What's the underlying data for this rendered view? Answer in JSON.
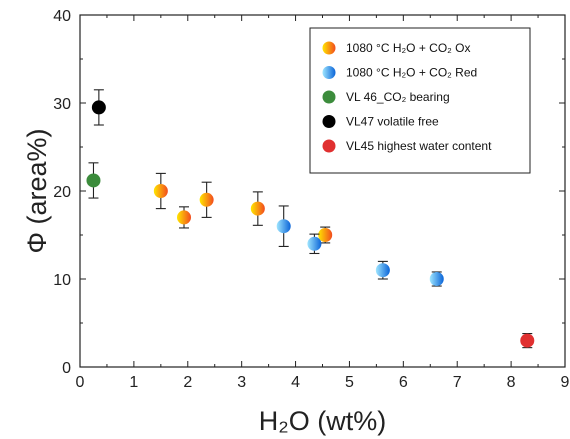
{
  "chart_data": {
    "type": "scatter",
    "xlabel": "H₂O (wt%)",
    "ylabel": "Φ (area%)",
    "xlim": [
      0,
      9
    ],
    "ylim": [
      0,
      40
    ],
    "x_ticks": [
      "0",
      "1",
      "2",
      "3",
      "4",
      "5",
      "6",
      "7",
      "8",
      "9"
    ],
    "y_ticks": [
      "0",
      "10",
      "20",
      "30",
      "40"
    ],
    "grid": false,
    "legend_position": "top-right",
    "series": [
      {
        "name": "1080 °C H₂O + CO₂ Ox",
        "color": "#f5a623",
        "gradient": [
          "#ffe600",
          "#f24b1e"
        ],
        "points": [
          {
            "x": 1.5,
            "y": 20.0,
            "err": 2.0
          },
          {
            "x": 1.93,
            "y": 17.0,
            "err": 1.2
          },
          {
            "x": 2.35,
            "y": 19.0,
            "err": 2.0
          },
          {
            "x": 3.3,
            "y": 18.0,
            "err": 1.9
          },
          {
            "x": 4.55,
            "y": 15.0,
            "err": 0.9
          }
        ]
      },
      {
        "name": "1080 °C H₂O + CO₂ Red",
        "color": "#1e90ff",
        "gradient": [
          "#9fe6ff",
          "#0a64d8"
        ],
        "points": [
          {
            "x": 3.78,
            "y": 16.0,
            "err": 2.3
          },
          {
            "x": 4.35,
            "y": 14.0,
            "err": 1.1
          },
          {
            "x": 5.62,
            "y": 11.0,
            "err": 1.0
          },
          {
            "x": 6.62,
            "y": 10.0,
            "err": 0.8
          }
        ]
      },
      {
        "name": "VL 46_CO₂ bearing",
        "color": "#3c8c3c",
        "points": [
          {
            "x": 0.25,
            "y": 21.2,
            "err": 2.0
          }
        ]
      },
      {
        "name": "VL47 volatile free",
        "color": "#000000",
        "points": [
          {
            "x": 0.35,
            "y": 29.5,
            "err": 2.0
          }
        ]
      },
      {
        "name": "VL45 highest water content",
        "color": "#e03030",
        "points": [
          {
            "x": 8.3,
            "y": 3.0,
            "err": 0.8
          }
        ]
      }
    ]
  }
}
